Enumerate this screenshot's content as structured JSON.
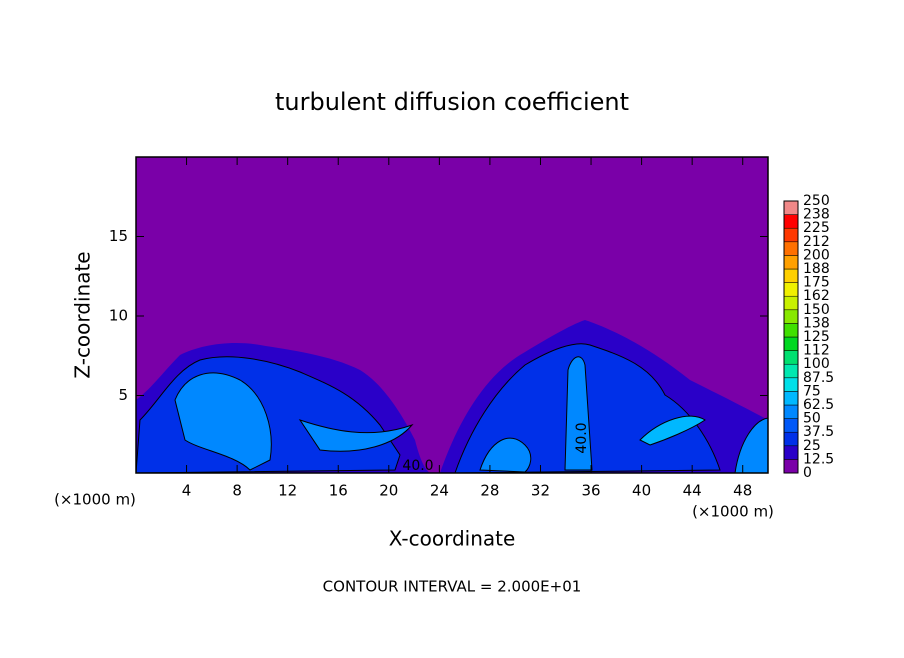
{
  "chart_data": {
    "type": "contour",
    "title": "turbulent diffusion coefficient",
    "x_label": "X-coordinate",
    "y_label": "Z-coordinate",
    "x_unit_label": "(×1000 m)",
    "note": "CONTOUR INTERVAL = 2.000E+01",
    "contour_labels": [
      "40.0",
      "40.0"
    ],
    "xlim": [
      0,
      50
    ],
    "xticks": [
      4,
      8,
      12,
      16,
      20,
      24,
      28,
      32,
      36,
      40,
      44,
      48
    ],
    "ylim": [
      0.125,
      20
    ],
    "yticks": [
      5,
      10,
      15
    ],
    "colorbar": {
      "ticks": [
        0,
        12.5,
        25,
        37.5,
        50,
        62.5,
        75,
        87.5,
        100,
        {
          "value": 112.5,
          "label": "112"
        },
        125,
        {
          "value": 137.5,
          "label": "138"
        },
        150,
        {
          "value": 162.5,
          "label": "162"
        },
        175,
        {
          "value": 187.5,
          "label": "188"
        },
        200,
        {
          "value": 212.5,
          "label": "212"
        },
        225,
        {
          "value": 237.5,
          "label": "238"
        },
        250
      ],
      "colors": [
        "#7a00a8",
        "#2a00c8",
        "#0030e8",
        "#0058f8",
        "#0088ff",
        "#00b8ff",
        "#00e0e8",
        "#00e8b0",
        "#00e070",
        "#00d820",
        "#40e000",
        "#88e800",
        "#c8f000",
        "#f0f000",
        "#ffd000",
        "#ffa000",
        "#ff7000",
        "#ff3800",
        "#ff0000",
        "#f08888"
      ]
    }
  }
}
